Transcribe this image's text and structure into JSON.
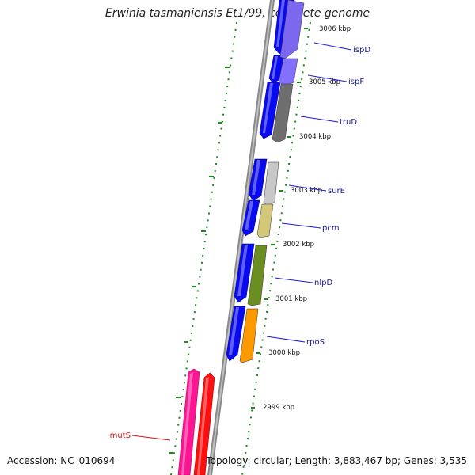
{
  "title": "Erwinia tasmaniensis Et1/99, complete genome",
  "footer": {
    "accession": "Accession: NC_010694",
    "topology": "Topology: circular; Length: 3,883,467 bp; Genes: 3,535"
  },
  "colors": {
    "forward_gene": "#0a0af0",
    "backbone": "#8a8a8a",
    "tick": "#1a8a1a",
    "label_line": "#1a1add",
    "label_text": "#1a1a99",
    "mutS_label": "#dd1111"
  },
  "position_labels": [
    "3006 kbp",
    "3005 kbp",
    "3004 kbp",
    "3003 kbp",
    "3002 kbp",
    "3001 kbp",
    "3000 kbp",
    "2999 kbp"
  ],
  "genes": [
    {
      "name": "ispD",
      "color": "#7b68ee",
      "label_color": "#1a1a99"
    },
    {
      "name": "ispF",
      "color": "#8470ff",
      "label_color": "#1a1a99"
    },
    {
      "name": "truD",
      "color": "#6e6e6e",
      "label_color": "#1a1a99"
    },
    {
      "name": "surE",
      "color": "#c8c8c8",
      "label_color": "#1a1a99"
    },
    {
      "name": "pcm",
      "color": "#d2c878",
      "label_color": "#1a1a99"
    },
    {
      "name": "nlpD",
      "color": "#6b8e23",
      "label_color": "#1a1a99"
    },
    {
      "name": "rpoS",
      "color": "#ff9900",
      "label_color": "#1a1a99"
    },
    {
      "name": "mutS",
      "color": "#ff1a1a",
      "label_color": "#dd1111"
    }
  ]
}
